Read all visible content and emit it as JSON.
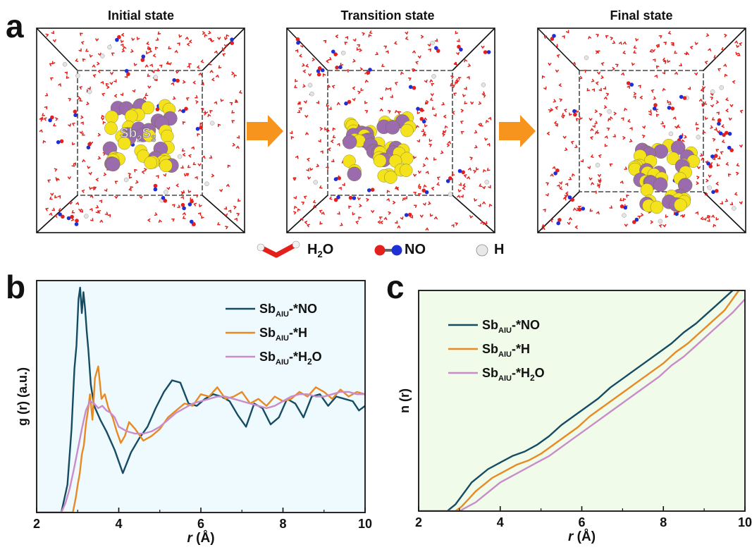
{
  "panel_a": {
    "letter": "a",
    "states": [
      {
        "title": "Initial state",
        "label_main": "Sb",
        "label_sub1": "2",
        "label_mid": "S",
        "label_sub2": "3"
      },
      {
        "title": "Transition state"
      },
      {
        "title": "Final state"
      }
    ],
    "legend": [
      {
        "name": "water",
        "text_main": "H",
        "text_sub": "2",
        "text_end": "O"
      },
      {
        "name": "no",
        "text_main": "NO",
        "text_sub": "",
        "text_end": ""
      },
      {
        "name": "hydrogen",
        "text_main": "H",
        "text_sub": "",
        "text_end": ""
      }
    ],
    "colors": {
      "water": "#e3201b",
      "nitrogen": "#1f2fd6",
      "sb": "#9b6cad",
      "s": "#f3e21c",
      "hydrogen": "#e4e4e4",
      "arrow": "#f7941d"
    }
  },
  "chart_data": [
    {
      "panel": "b",
      "type": "line",
      "title": "",
      "xlabel_italic": "r",
      "xlabel_unit": "(Å)",
      "ylabel": "g (r) (a.u.)",
      "xlim": [
        2,
        10
      ],
      "ylim": [
        0,
        1
      ],
      "xticks": [
        2,
        4,
        6,
        8,
        10
      ],
      "yticks_labeled": false,
      "legend_position": "top-right",
      "background": "#eefafd",
      "series": [
        {
          "name": "Sb",
          "name_sub": "AIU",
          "name_suffix": "-*NO",
          "suffix_sub": "",
          "suffix_end": "",
          "color": "#164c63",
          "x": [
            2.0,
            2.6,
            2.75,
            2.85,
            2.92,
            2.97,
            3.02,
            3.06,
            3.1,
            3.14,
            3.18,
            3.22,
            3.26,
            3.32,
            3.4,
            3.55,
            3.7,
            3.9,
            4.1,
            4.3,
            4.5,
            4.7,
            4.9,
            5.1,
            5.3,
            5.5,
            5.7,
            5.9,
            6.1,
            6.3,
            6.5,
            6.7,
            6.9,
            7.1,
            7.3,
            7.5,
            7.7,
            7.9,
            8.1,
            8.3,
            8.5,
            8.7,
            8.9,
            9.1,
            9.3,
            9.5,
            9.7,
            9.85,
            10.0
          ],
          "y": [
            0.0,
            0.0,
            0.12,
            0.36,
            0.62,
            0.72,
            0.92,
            0.97,
            0.86,
            0.95,
            0.88,
            0.78,
            0.7,
            0.55,
            0.46,
            0.4,
            0.35,
            0.27,
            0.17,
            0.26,
            0.32,
            0.37,
            0.45,
            0.52,
            0.57,
            0.56,
            0.47,
            0.46,
            0.49,
            0.51,
            0.5,
            0.48,
            0.42,
            0.37,
            0.47,
            0.45,
            0.38,
            0.41,
            0.49,
            0.47,
            0.41,
            0.5,
            0.51,
            0.46,
            0.5,
            0.49,
            0.48,
            0.44,
            0.46
          ]
        },
        {
          "name": "Sb",
          "name_sub": "AIU",
          "name_suffix": "-*H",
          "suffix_sub": "",
          "suffix_end": "",
          "color": "#e88a24",
          "x": [
            2.0,
            2.88,
            2.95,
            3.0,
            3.05,
            3.1,
            3.15,
            3.2,
            3.25,
            3.3,
            3.36,
            3.42,
            3.5,
            3.58,
            3.66,
            3.75,
            3.85,
            3.95,
            4.05,
            4.15,
            4.25,
            4.4,
            4.6,
            4.8,
            5.0,
            5.2,
            5.4,
            5.6,
            5.8,
            6.0,
            6.2,
            6.4,
            6.6,
            6.8,
            7.0,
            7.2,
            7.4,
            7.6,
            7.8,
            8.0,
            8.2,
            8.4,
            8.6,
            8.8,
            9.0,
            9.2,
            9.4,
            9.6,
            9.8,
            10.0
          ],
          "y": [
            0.0,
            0.0,
            0.06,
            0.12,
            0.17,
            0.25,
            0.29,
            0.38,
            0.44,
            0.51,
            0.4,
            0.58,
            0.63,
            0.49,
            0.51,
            0.45,
            0.41,
            0.35,
            0.3,
            0.33,
            0.39,
            0.36,
            0.31,
            0.33,
            0.36,
            0.41,
            0.44,
            0.47,
            0.46,
            0.51,
            0.5,
            0.54,
            0.49,
            0.5,
            0.52,
            0.47,
            0.49,
            0.46,
            0.5,
            0.48,
            0.49,
            0.52,
            0.5,
            0.54,
            0.52,
            0.49,
            0.53,
            0.5,
            0.52,
            0.51
          ]
        },
        {
          "name": "Sb",
          "name_sub": "AIU",
          "name_suffix": "-*H",
          "suffix_sub": "2",
          "suffix_end": "O",
          "color": "#c98cc8",
          "x": [
            2.0,
            2.6,
            2.7,
            2.8,
            2.9,
            3.0,
            3.1,
            3.2,
            3.3,
            3.4,
            3.5,
            3.6,
            3.7,
            3.8,
            3.9,
            4.0,
            4.2,
            4.4,
            4.6,
            4.8,
            5.0,
            5.2,
            5.4,
            5.6,
            5.8,
            6.0,
            6.2,
            6.4,
            6.6,
            6.8,
            7.0,
            7.2,
            7.4,
            7.6,
            7.8,
            8.0,
            8.2,
            8.4,
            8.6,
            8.8,
            9.0,
            9.2,
            9.4,
            9.6,
            9.8,
            10.0
          ],
          "y": [
            0.0,
            0.0,
            0.04,
            0.1,
            0.18,
            0.27,
            0.36,
            0.44,
            0.48,
            0.47,
            0.45,
            0.46,
            0.44,
            0.43,
            0.41,
            0.37,
            0.35,
            0.34,
            0.34,
            0.35,
            0.37,
            0.4,
            0.43,
            0.45,
            0.47,
            0.48,
            0.49,
            0.5,
            0.5,
            0.49,
            0.48,
            0.47,
            0.46,
            0.45,
            0.46,
            0.48,
            0.5,
            0.51,
            0.51,
            0.5,
            0.5,
            0.51,
            0.52,
            0.52,
            0.51,
            0.51
          ]
        }
      ]
    },
    {
      "panel": "c",
      "type": "line",
      "title": "",
      "xlabel_italic": "r",
      "xlabel_unit": "(Å)",
      "ylabel": "n (r)",
      "xlim": [
        2,
        10
      ],
      "ylim": [
        0,
        1
      ],
      "xticks": [
        2,
        4,
        6,
        8,
        10
      ],
      "yticks_labeled": false,
      "legend_position": "top-left",
      "background": "#f0fbea",
      "series": [
        {
          "name": "Sb",
          "name_sub": "AIU",
          "name_suffix": "-*NO",
          "suffix_sub": "",
          "suffix_end": "",
          "color": "#164c63",
          "x": [
            2.0,
            2.7,
            2.9,
            3.1,
            3.3,
            3.5,
            3.7,
            4.0,
            4.3,
            4.6,
            4.9,
            5.2,
            5.5,
            5.8,
            6.1,
            6.4,
            6.7,
            7.0,
            7.3,
            7.6,
            7.9,
            8.2,
            8.5,
            8.8,
            9.1,
            9.4,
            9.7
          ],
          "y": [
            0.0,
            0.0,
            0.03,
            0.08,
            0.13,
            0.16,
            0.19,
            0.22,
            0.25,
            0.27,
            0.3,
            0.34,
            0.39,
            0.43,
            0.47,
            0.51,
            0.56,
            0.6,
            0.64,
            0.68,
            0.72,
            0.76,
            0.81,
            0.85,
            0.9,
            0.95,
            1.0
          ]
        },
        {
          "name": "Sb",
          "name_sub": "AIU",
          "name_suffix": "-*H",
          "suffix_sub": "",
          "suffix_end": "",
          "color": "#e88a24",
          "x": [
            2.0,
            2.9,
            3.05,
            3.2,
            3.4,
            3.6,
            3.8,
            4.1,
            4.4,
            4.7,
            5.0,
            5.3,
            5.6,
            5.9,
            6.2,
            6.5,
            6.8,
            7.1,
            7.4,
            7.7,
            8.0,
            8.3,
            8.6,
            8.9,
            9.2,
            9.5,
            9.85
          ],
          "y": [
            0.0,
            0.0,
            0.02,
            0.05,
            0.09,
            0.12,
            0.15,
            0.18,
            0.21,
            0.23,
            0.26,
            0.3,
            0.34,
            0.38,
            0.43,
            0.47,
            0.51,
            0.55,
            0.59,
            0.63,
            0.67,
            0.72,
            0.76,
            0.81,
            0.86,
            0.91,
            1.0
          ]
        },
        {
          "name": "Sb",
          "name_sub": "AIU",
          "name_suffix": "-*H",
          "suffix_sub": "2",
          "suffix_end": "O",
          "color": "#c98cc8",
          "x": [
            2.0,
            3.0,
            3.2,
            3.4,
            3.6,
            3.8,
            4.0,
            4.3,
            4.6,
            4.9,
            5.2,
            5.5,
            5.8,
            6.1,
            6.4,
            6.7,
            7.0,
            7.3,
            7.6,
            7.9,
            8.2,
            8.5,
            8.8,
            9.1,
            9.4,
            9.7,
            10.0
          ],
          "y": [
            0.0,
            0.0,
            0.02,
            0.04,
            0.07,
            0.1,
            0.13,
            0.16,
            0.19,
            0.22,
            0.25,
            0.29,
            0.33,
            0.37,
            0.41,
            0.45,
            0.49,
            0.53,
            0.57,
            0.61,
            0.66,
            0.7,
            0.75,
            0.8,
            0.85,
            0.9,
            0.96
          ]
        }
      ]
    }
  ]
}
